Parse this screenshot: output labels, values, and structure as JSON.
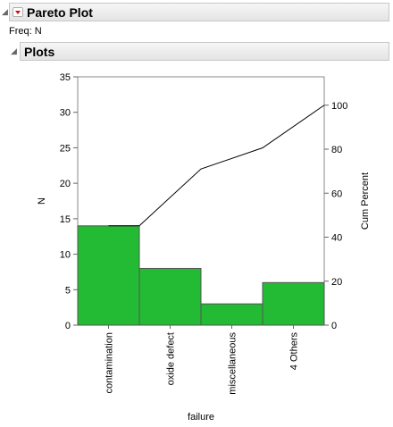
{
  "header": {
    "title": "Pareto Plot",
    "menu_icon": "red-triangle-menu-icon",
    "disclosure_icon": "disclosure-triangle-icon"
  },
  "freq_label": "Freq: N",
  "plots_section": {
    "title": "Plots",
    "disclosure_icon": "disclosure-triangle-icon"
  },
  "colors": {
    "bar_fill": "#22bb33",
    "bar_stroke": "#555555",
    "line": "#000000"
  },
  "chart_data": {
    "type": "bar",
    "categories": [
      "contamination",
      "oxide defect",
      "miscellaneous",
      "4 Others"
    ],
    "values": [
      14,
      8,
      3,
      6
    ],
    "cum_percent": [
      45.2,
      71.0,
      80.6,
      100
    ],
    "xlabel": "failure",
    "ylabel": "N",
    "y2label": "Cum Percent",
    "ylim": [
      0,
      35
    ],
    "yticks": [
      0,
      5,
      10,
      15,
      20,
      25,
      30,
      35
    ],
    "y2lim": [
      0,
      112.9
    ],
    "y2ticks": [
      0,
      20,
      40,
      60,
      80,
      100
    ],
    "grid": false
  }
}
